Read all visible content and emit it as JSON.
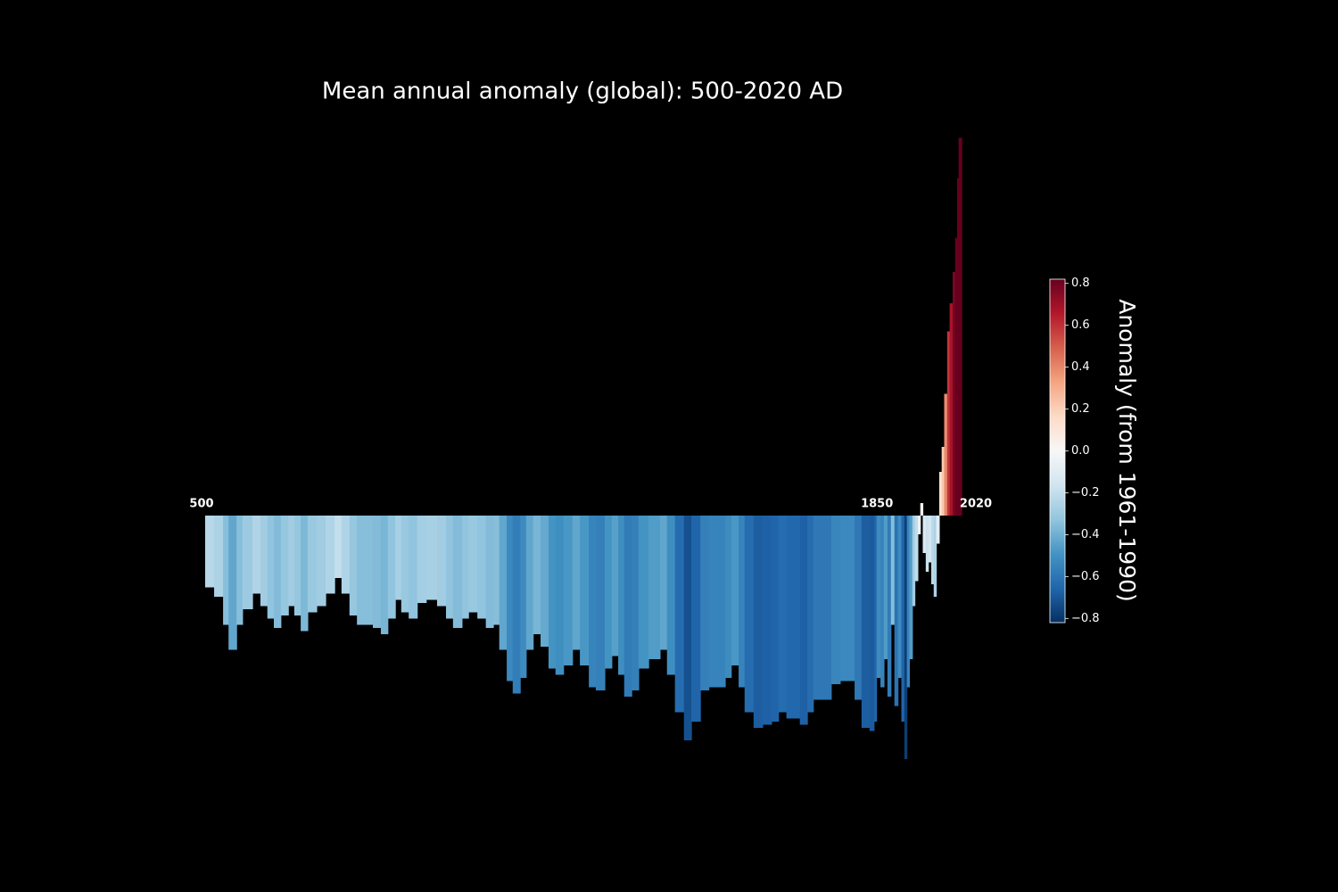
{
  "chart_data": {
    "type": "bar",
    "title": "Mean annual anomaly (global): 500-2020 AD",
    "x": [
      500,
      518,
      536,
      547,
      563,
      575,
      595,
      611,
      625,
      638,
      652,
      667,
      679,
      692,
      706,
      724,
      742,
      760,
      774,
      790,
      805,
      823,
      837,
      853,
      867,
      882,
      894,
      909,
      926,
      944,
      966,
      984,
      998,
      1016,
      1029,
      1047,
      1064,
      1079,
      1091,
      1106,
      1118,
      1133,
      1145,
      1159,
      1174,
      1190,
      1204,
      1220,
      1238,
      1253,
      1271,
      1285,
      1303,
      1317,
      1330,
      1342,
      1357,
      1371,
      1391,
      1414,
      1428,
      1444,
      1462,
      1477,
      1495,
      1512,
      1530,
      1545,
      1557,
      1572,
      1584,
      1602,
      1620,
      1638,
      1652,
      1668,
      1683,
      1695,
      1710,
      1722,
      1740,
      1758,
      1776,
      1790,
      1805,
      1819,
      1835,
      1844,
      1849,
      1857,
      1864,
      1871,
      1878,
      1885,
      1892,
      1899,
      1905,
      1910,
      1915,
      1921,
      1926,
      1932,
      1937,
      1942,
      1948,
      1953,
      1959,
      1964,
      1969,
      1975,
      1980,
      1985,
      1991,
      1996,
      2002,
      2007,
      2011,
      2014
    ],
    "values": [
      -0.23,
      -0.26,
      -0.35,
      -0.43,
      -0.35,
      -0.3,
      -0.25,
      -0.29,
      -0.33,
      -0.36,
      -0.32,
      -0.29,
      -0.32,
      -0.37,
      -0.31,
      -0.29,
      -0.25,
      -0.2,
      -0.25,
      -0.32,
      -0.35,
      -0.35,
      -0.36,
      -0.38,
      -0.33,
      -0.27,
      -0.31,
      -0.33,
      -0.28,
      -0.27,
      -0.29,
      -0.33,
      -0.36,
      -0.33,
      -0.31,
      -0.33,
      -0.36,
      -0.35,
      -0.43,
      -0.53,
      -0.57,
      -0.52,
      -0.43,
      -0.38,
      -0.42,
      -0.49,
      -0.51,
      -0.48,
      -0.43,
      -0.48,
      -0.55,
      -0.56,
      -0.49,
      -0.45,
      -0.51,
      -0.58,
      -0.56,
      -0.49,
      -0.46,
      -0.43,
      -0.51,
      -0.63,
      -0.72,
      -0.66,
      -0.56,
      -0.55,
      -0.55,
      -0.52,
      -0.48,
      -0.55,
      -0.63,
      -0.68,
      -0.67,
      -0.66,
      -0.63,
      -0.65,
      -0.65,
      -0.67,
      -0.63,
      -0.59,
      -0.59,
      -0.54,
      -0.53,
      -0.53,
      -0.59,
      -0.68,
      -0.69,
      -0.66,
      -0.52,
      -0.55,
      -0.46,
      -0.58,
      -0.35,
      -0.61,
      -0.52,
      -0.66,
      -0.78,
      -0.55,
      -0.46,
      -0.29,
      -0.21,
      -0.06,
      0.04,
      -0.12,
      -0.18,
      -0.15,
      -0.22,
      -0.26,
      -0.09,
      0.14,
      0.22,
      0.39,
      0.59,
      0.68,
      0.78,
      0.89,
      1.08,
      1.21
    ],
    "xlim": [
      500,
      2020
    ],
    "xticks": [
      500,
      1850,
      2020
    ],
    "ylim": [
      -0.85,
      1.25
    ],
    "colormap": "RdBu_r",
    "colorbar": {
      "label": "Anomaly (from 1961-1990)",
      "lim": [
        -0.82,
        0.82
      ],
      "ticks": [
        {
          "value": -0.8,
          "label": "−0.8"
        },
        {
          "value": -0.6,
          "label": "−0.6"
        },
        {
          "value": -0.4,
          "label": "−0.4"
        },
        {
          "value": -0.2,
          "label": "−0.2"
        },
        {
          "value": 0,
          "label": "0.0"
        },
        0.2,
        0.4,
        0.6,
        0.8
      ]
    }
  }
}
